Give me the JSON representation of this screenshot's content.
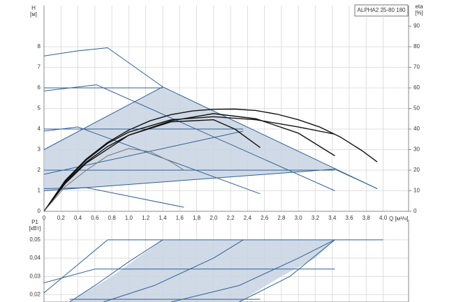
{
  "chart_data": [
    {
      "type": "line",
      "title": "ALPHA2 25-80 180",
      "y_label": "H",
      "y_unit": "[м]",
      "y2_label": "eta",
      "y2_unit": "[%]",
      "x_label": "Q [м³/ч]",
      "xlim": [
        0,
        4.3
      ],
      "ylim": [
        0,
        10
      ],
      "y2lim": [
        0,
        100
      ],
      "grid": true,
      "xticks": [
        0,
        {
          "value": 0.2,
          "label": "0,2"
        },
        {
          "value": 0.4,
          "label": "0,4"
        },
        {
          "value": 0.6,
          "label": "0,6"
        },
        {
          "value": 0.8,
          "label": "0,8"
        },
        {
          "value": 1,
          "label": "1,0"
        },
        {
          "value": 1.2,
          "label": "1,2"
        },
        {
          "value": 1.4,
          "label": "1,4"
        },
        {
          "value": 1.6,
          "label": "1,6"
        },
        {
          "value": 1.8,
          "label": "1,8"
        },
        {
          "value": 2,
          "label": "2,0"
        },
        {
          "value": 2.2,
          "label": "2,2"
        },
        {
          "value": 2.4,
          "label": "2,4"
        },
        {
          "value": 2.6,
          "label": "2,6"
        },
        {
          "value": 2.8,
          "label": "2,8"
        },
        {
          "value": 3,
          "label": "3,0"
        },
        {
          "value": 3.2,
          "label": "3,2"
        },
        {
          "value": 3.4,
          "label": "3,4"
        },
        {
          "value": 3.6,
          "label": "3,6"
        },
        {
          "value": 3.8,
          "label": "3,8"
        },
        {
          "value": 4,
          "label": "4,0"
        }
      ],
      "yticks": [
        0,
        1,
        2,
        3,
        4,
        5,
        6,
        7,
        8
      ],
      "y2ticks": [
        0,
        10,
        20,
        30,
        40,
        50,
        60,
        70,
        80,
        90
      ],
      "regions": [
        {
          "color": "#c8d4e2",
          "x": [
            0,
            0,
            1.4,
            3.43,
            0
          ],
          "values": [
            1.0,
            3.0,
            6.05,
            2.05,
            1.0
          ]
        }
      ],
      "series": [
        {
          "color": "#2f5f96",
          "x": [
            0,
            0.4,
            0.75,
            1.4,
            3.93
          ],
          "values": [
            7.55,
            7.8,
            7.95,
            6.05,
            1.1
          ]
        },
        {
          "color": "#2f5f96",
          "x": [
            0,
            0.62,
            3.43
          ],
          "values": [
            5.85,
            6.15,
            1.0
          ]
        },
        {
          "color": "#2f5f96",
          "x": [
            0,
            1.4
          ],
          "values": [
            6.0,
            6.0
          ]
        },
        {
          "color": "#2f5f96",
          "x": [
            0,
            2.35
          ],
          "values": [
            4.0,
            4.0
          ]
        },
        {
          "color": "#2f5f96",
          "x": [
            0,
            0.4,
            2.55
          ],
          "values": [
            3.9,
            4.1,
            0.85
          ]
        },
        {
          "color": "#2f5f96",
          "x": [
            0,
            2.35
          ],
          "values": [
            1.8,
            3.9
          ]
        },
        {
          "color": "#2f5f96",
          "x": [
            0,
            1.4
          ],
          "values": [
            3.0,
            6.05
          ]
        },
        {
          "color": "#2f5f96",
          "x": [
            0,
            3.43
          ],
          "values": [
            2.0,
            2.0
          ]
        },
        {
          "color": "#2f5f96",
          "x": [
            0,
            3.43
          ],
          "values": [
            1.0,
            2.05
          ]
        },
        {
          "color": "#2f5f96",
          "x": [
            3.43,
            3.93
          ],
          "values": [
            2.05,
            1.1
          ]
        },
        {
          "color": "#2f5f96",
          "x": [
            0,
            0.5,
            1.65
          ],
          "values": [
            1.1,
            1.15,
            0.2
          ]
        },
        {
          "color": "#111111",
          "x": [
            0,
            0.25,
            0.5,
            0.75,
            1,
            1.25,
            1.5,
            1.75,
            2,
            2.25,
            2.5,
            2.75,
            3,
            3.25,
            3.5,
            3.75,
            3.93
          ],
          "values": [
            0,
            1.5,
            2.55,
            3.35,
            3.95,
            4.4,
            4.7,
            4.88,
            4.96,
            4.97,
            4.9,
            4.72,
            4.45,
            4.1,
            3.6,
            2.95,
            2.4
          ]
        },
        {
          "color": "#111111",
          "x": [
            0,
            0.25,
            0.5,
            0.75,
            1,
            1.5,
            2,
            2.5,
            3,
            3.43
          ],
          "values": [
            0,
            1.45,
            2.5,
            3.3,
            3.85,
            4.45,
            4.6,
            4.45,
            4.1,
            3.75
          ]
        },
        {
          "color": "#111111",
          "x": [
            0,
            0.25,
            0.5,
            0.75,
            1,
            1.5,
            2,
            2.25,
            2.55
          ],
          "values": [
            0,
            1.4,
            2.4,
            3.15,
            3.7,
            4.35,
            4.45,
            4.0,
            3.1
          ]
        },
        {
          "color": "#111111",
          "x": [
            0,
            0.25,
            0.5,
            1,
            1.5,
            2,
            2.5,
            3,
            3.43
          ],
          "values": [
            0,
            1.35,
            2.35,
            3.7,
            4.4,
            4.75,
            4.5,
            3.8,
            2.7
          ]
        },
        {
          "color": "#777777",
          "x": [
            0,
            0.25,
            0.5,
            0.75,
            1,
            1.25,
            1.5,
            1.65
          ],
          "values": [
            0,
            1.2,
            2.0,
            2.7,
            3.05,
            2.9,
            2.4,
            2.0
          ]
        }
      ]
    },
    {
      "type": "line",
      "y_label": "P1",
      "y_unit": "[кВт]",
      "xlim": [
        0,
        4.3
      ],
      "ylim": [
        0.016,
        0.061
      ],
      "grid": true,
      "yticks": [
        {
          "value": 0.02,
          "label": "0,02"
        },
        {
          "value": 0.03,
          "label": "0,03"
        },
        {
          "value": 0.04,
          "label": "0,04"
        },
        {
          "value": 0.05,
          "label": "0,05"
        }
      ],
      "regions": [
        {
          "color": "#c8d4e2",
          "x": [
            0.3,
            0.8,
            1.1,
            1.4,
            3.43,
            3.2,
            2.8,
            2.3
          ],
          "values": [
            0.016,
            0.03,
            0.04,
            0.05,
            0.05,
            0.04,
            0.03,
            0.016
          ]
        }
      ],
      "series": [
        {
          "color": "#2f5f96",
          "x": [
            0.75,
            4.0
          ],
          "values": [
            0.05,
            0.05
          ]
        },
        {
          "color": "#2f5f96",
          "x": [
            0,
            0.75
          ],
          "values": [
            0.021,
            0.05
          ]
        },
        {
          "color": "#2f5f96",
          "x": [
            0,
            0.6
          ],
          "values": [
            0.0265,
            0.034
          ]
        },
        {
          "color": "#2f5f96",
          "x": [
            0.6,
            3.43
          ],
          "values": [
            0.034,
            0.034
          ]
        },
        {
          "color": "#2f5f96",
          "x": [
            0.3,
            2.55
          ],
          "values": [
            0.0175,
            0.0175
          ]
        },
        {
          "color": "#2f5f96",
          "x": [
            0.3,
            0.6,
            1.0,
            1.4
          ],
          "values": [
            0.016,
            0.025,
            0.038,
            0.05
          ]
        },
        {
          "color": "#2f5f96",
          "x": [
            0.7,
            1.3,
            2.0,
            2.35
          ],
          "values": [
            0.016,
            0.025,
            0.04,
            0.05
          ]
        },
        {
          "color": "#2f5f96",
          "x": [
            1.5,
            2.3,
            3.0,
            3.43
          ],
          "values": [
            0.016,
            0.025,
            0.04,
            0.05
          ]
        },
        {
          "color": "#2f5f96",
          "x": [
            2.3,
            2.9,
            3.43
          ],
          "values": [
            0.016,
            0.03,
            0.05
          ]
        }
      ]
    }
  ]
}
